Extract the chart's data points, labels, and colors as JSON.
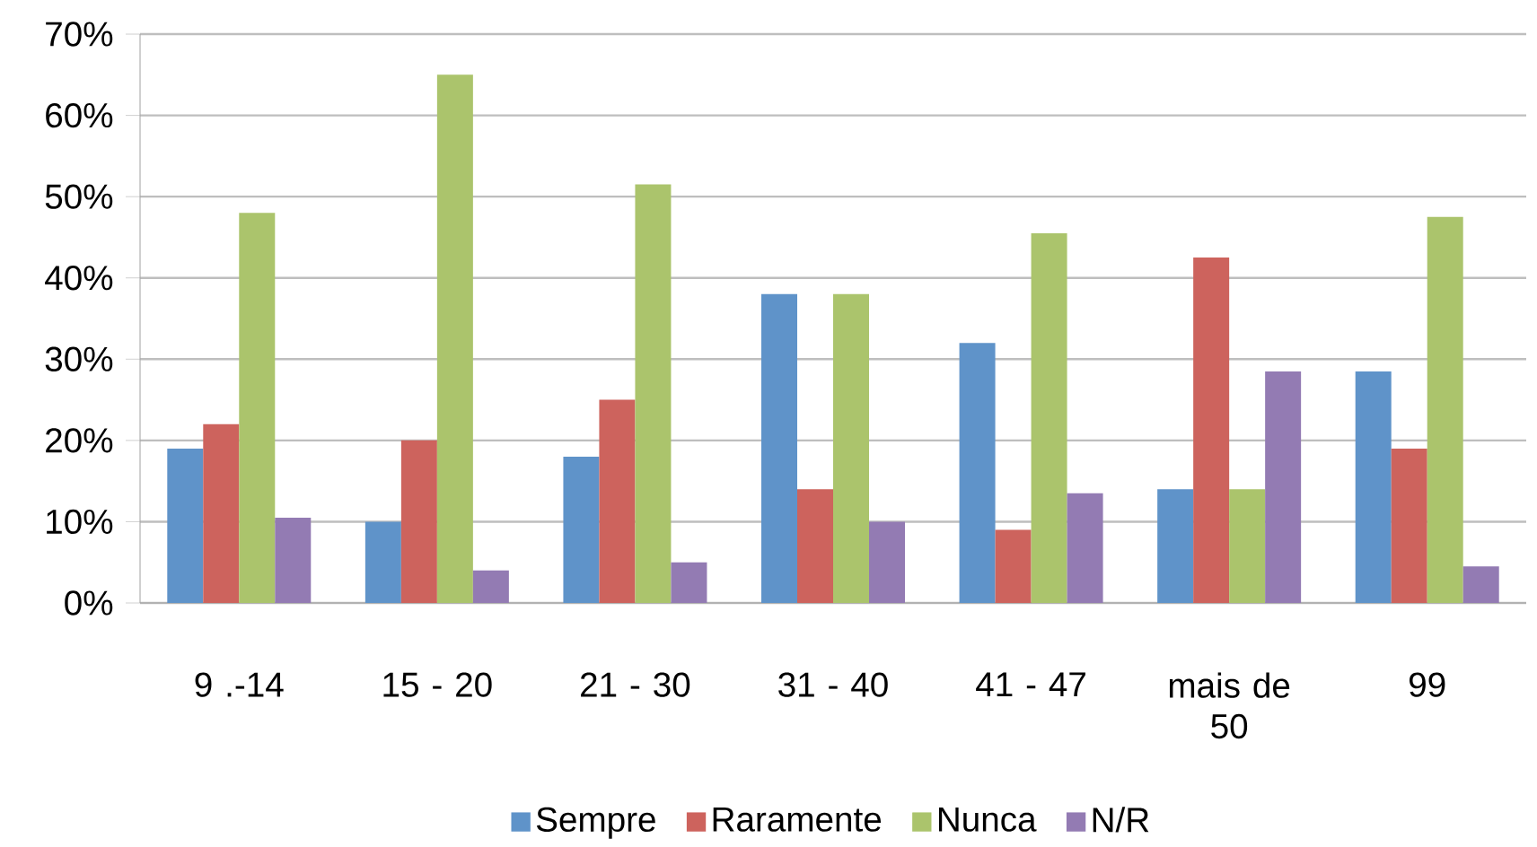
{
  "chart_data": {
    "type": "bar",
    "categories": [
      "9 .-14",
      "15 - 20",
      "21 - 30",
      "31 - 40",
      "41 - 47",
      "mais de 50",
      "99"
    ],
    "series": [
      {
        "name": "Sempre",
        "color": "#5f93c9",
        "values": [
          19,
          10,
          18,
          38,
          32,
          14,
          28.5
        ]
      },
      {
        "name": "Raramente",
        "color": "#cd635d",
        "values": [
          22,
          20,
          25,
          14,
          9,
          42.5,
          19
        ]
      },
      {
        "name": "Nunca",
        "color": "#abc46c",
        "values": [
          48,
          65,
          51.5,
          38,
          45.5,
          14,
          47.5
        ]
      },
      {
        "name": "N/R",
        "color": "#937bb3",
        "values": [
          10.5,
          4,
          5,
          10,
          13.5,
          28.5,
          4.5
        ]
      }
    ],
    "ylim": [
      0,
      70
    ],
    "yticks": [
      {
        "value": 0,
        "label": "0%"
      },
      {
        "value": 10,
        "label": "10%"
      },
      {
        "value": 20,
        "label": "20%"
      },
      {
        "value": 30,
        "label": "30%"
      },
      {
        "value": 40,
        "label": "40%"
      },
      {
        "value": 50,
        "label": "50%"
      },
      {
        "value": 60,
        "label": "60%"
      },
      {
        "value": 70,
        "label": "70%"
      }
    ],
    "grid": "y",
    "legend": "bottom"
  }
}
